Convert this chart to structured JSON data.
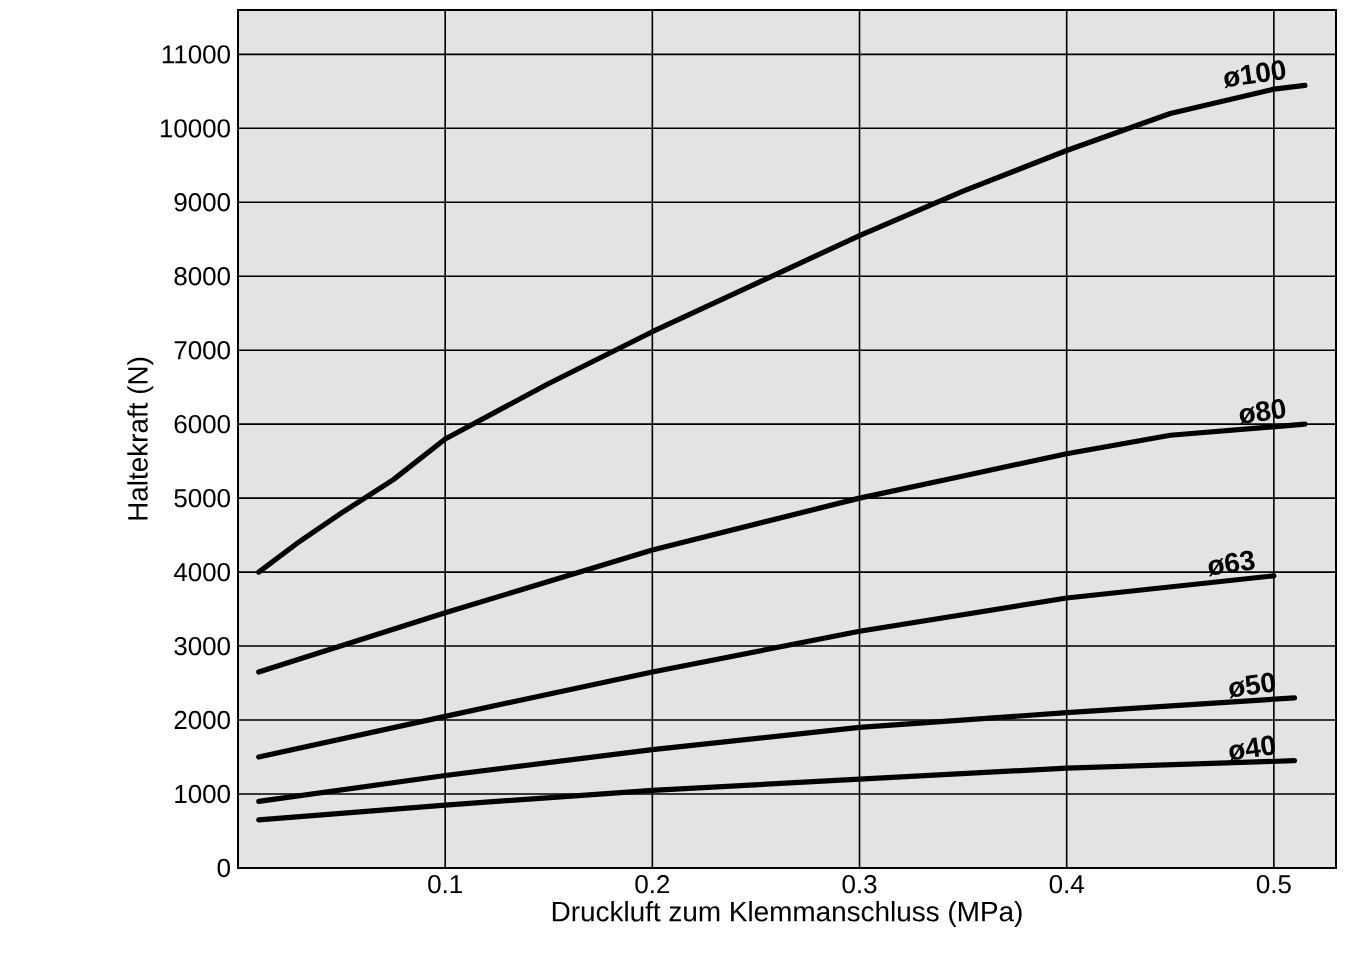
{
  "chart_data": {
    "type": "line",
    "xlabel": "Druckluft zum Klemmanschluss (MPa)",
    "ylabel": "Haltekraft (N)",
    "xlim": [
      0,
      0.53
    ],
    "ylim": [
      0,
      11600
    ],
    "xticks": [
      0.1,
      0.2,
      0.3,
      0.4,
      0.5
    ],
    "yticks": [
      0,
      1000,
      2000,
      3000,
      4000,
      5000,
      6000,
      7000,
      8000,
      9000,
      10000,
      11000
    ],
    "grid": true,
    "marker": "none",
    "line_style": "solid",
    "series": [
      {
        "name": "ø100",
        "color": "#000000",
        "x": [
          0.01,
          0.03,
          0.05,
          0.075,
          0.1,
          0.15,
          0.2,
          0.25,
          0.3,
          0.35,
          0.4,
          0.45,
          0.5,
          0.515
        ],
        "values": [
          4000,
          4420,
          4800,
          5250,
          5800,
          6550,
          7250,
          7900,
          8550,
          9150,
          9700,
          10200,
          10530,
          10580
        ]
      },
      {
        "name": "ø80",
        "color": "#000000",
        "x": [
          0.01,
          0.1,
          0.2,
          0.3,
          0.35,
          0.4,
          0.45,
          0.515
        ],
        "values": [
          2650,
          3450,
          4300,
          5000,
          5300,
          5600,
          5850,
          6000
        ]
      },
      {
        "name": "ø63",
        "color": "#000000",
        "x": [
          0.01,
          0.1,
          0.2,
          0.3,
          0.4,
          0.5
        ],
        "values": [
          1500,
          2050,
          2650,
          3200,
          3650,
          3950
        ]
      },
      {
        "name": "ø50",
        "color": "#000000",
        "x": [
          0.01,
          0.1,
          0.2,
          0.3,
          0.4,
          0.51
        ],
        "values": [
          900,
          1250,
          1600,
          1900,
          2100,
          2300
        ]
      },
      {
        "name": "ø40",
        "color": "#000000",
        "x": [
          0.01,
          0.1,
          0.2,
          0.3,
          0.4,
          0.51
        ],
        "values": [
          650,
          850,
          1050,
          1200,
          1350,
          1450
        ]
      }
    ]
  }
}
